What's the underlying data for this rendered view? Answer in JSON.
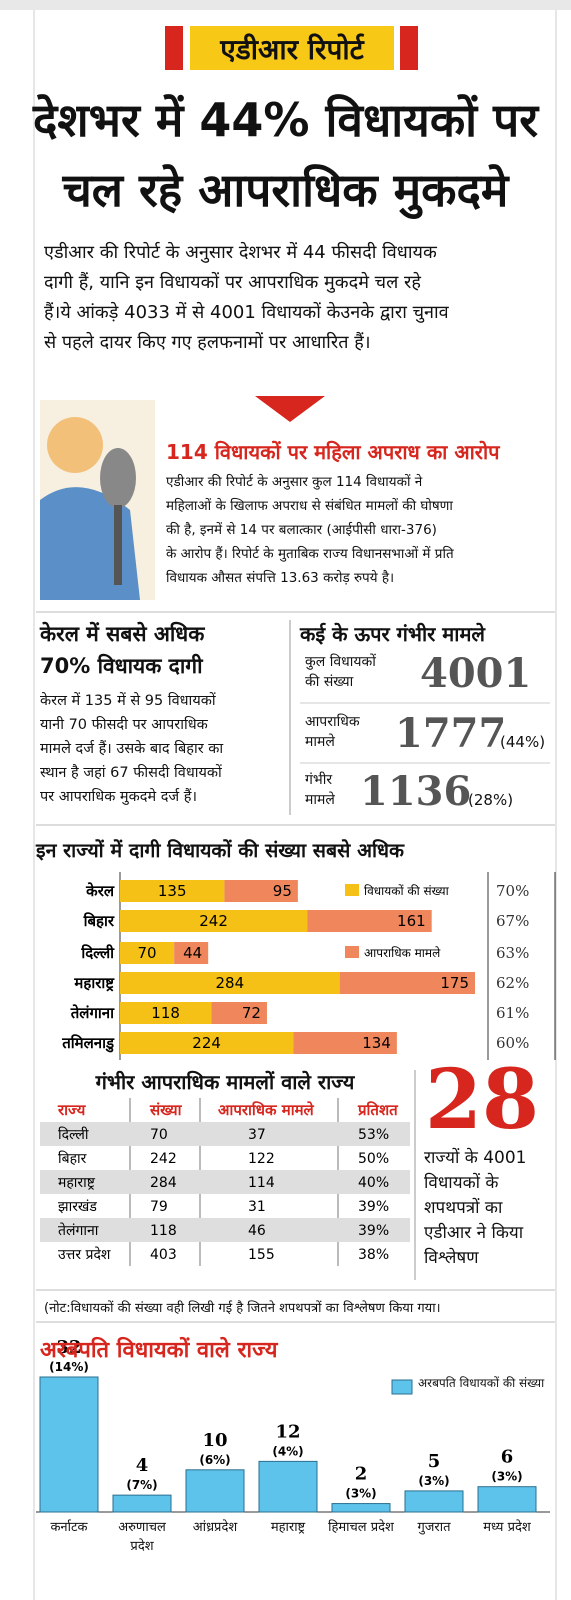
{
  "header": {
    "tag": "एडीआर रिपोर्ट",
    "headline": [
      "देशभर में 44% विधायकों पर",
      "चल रहे आपराधिक मुकदमे"
    ],
    "intro": [
      "एडीआर की रिपोर्ट के अनुसार देशभर में 44 फीसदी विधायक",
      "दागी हैं, यानि इन विधायकों पर आपराधिक मुकदमे चल रहे",
      "हैं।ये आंकड़े 4033 में से 4001 विधायकों केउनके द्वारा चुनाव",
      "से पहले दायर किए गए हलफनामों पर आधारित हैं।"
    ]
  },
  "women": {
    "title": "114 विधायकों पर महिला अपराध का आरोप",
    "lines": [
      "एडीआर की रिपोर्ट के अनुसार कुल 114 विधायकों ने",
      "महिलाओं के खिलाफ अपराध से संबंधित मामलों की घोषणा",
      "की है, इनमें से 14 पर बलात्कार (आईपीसी धारा-376)",
      "के आरोप हैं। रिपोर्ट के मुताबिक राज्य विधानसभाओं में प्रति",
      "विधायक औसत संपत्ति 13.63 करोड़ रुपये है।"
    ]
  },
  "kerala": {
    "title": [
      "केरल में सबसे अधिक",
      "70% विधायक दागी"
    ],
    "lines": [
      "केरल में 135 में से 95 विधायकों",
      "यानी 70 फीसदी पर आपराधिक",
      "मामले दर्ज हैं। उसके बाद बिहार का",
      "स्थान है जहां 67 फीसदी विधायकों",
      "पर आपराधिक मुकदमे दर्ज हैं।"
    ]
  },
  "serious": {
    "title": "कई के ऊपर गंभीर मामले",
    "rows": [
      {
        "label": [
          "कुल विधायकों",
          "की संख्या"
        ],
        "value": "4001"
      },
      {
        "label": [
          "आपराधिक",
          "मामले"
        ],
        "value": "1777",
        "share": "(44%)"
      },
      {
        "label": [
          "गंभीर",
          "मामले"
        ],
        "value": "1136",
        "share": "(28%)"
      }
    ]
  },
  "chart_data": [
    {
      "type": "bar",
      "orientation": "horizontal",
      "stacked": true,
      "title": "इन राज्यों में दागी विधायकों की संख्या सबसे अधिक",
      "categories": [
        "केरल",
        "बिहार",
        "दिल्ली",
        "महाराष्ट्र",
        "तेलंगाना",
        "तमिलनाडु"
      ],
      "series": [
        {
          "name": "विधायकों की संख्या",
          "color": "#f5c116",
          "values": [
            135,
            242,
            70,
            284,
            118,
            224
          ]
        },
        {
          "name": "आपराधिक मामले",
          "color": "#f0875c",
          "values": [
            95,
            161,
            44,
            175,
            72,
            134
          ]
        }
      ],
      "shares": [
        "70%",
        "67%",
        "63%",
        "62%",
        "61%",
        "60%"
      ]
    },
    {
      "type": "bar",
      "title": "अरबपति विधायकों वाले राज्य",
      "categories": [
        "कर्नाटक",
        "अरुणाचल प्रदेश",
        "आंध्रप्रदेश",
        "महाराष्ट्र",
        "हिमाचल प्रदेश",
        "गुजरात",
        "मध्य प्रदेश"
      ],
      "series": [
        {
          "name": "अरबपति विधायकों की संख्या",
          "color": "#5ec3ea",
          "values": [
            32,
            4,
            10,
            12,
            2,
            5,
            6
          ]
        }
      ],
      "shares": [
        "(14%)",
        "(7%)",
        "(6%)",
        "(4%)",
        "(3%)",
        "(3%)",
        "(3%)"
      ]
    }
  ],
  "table": {
    "title": "गंभीर आपराधिक मामलों वाले राज्य",
    "columns": [
      "राज्य",
      "संख्या",
      "आपराधिक मामले",
      "प्रतिशत"
    ],
    "rows": [
      [
        "दिल्ली",
        "70",
        "37",
        "53%"
      ],
      [
        "बिहार",
        "242",
        "122",
        "50%"
      ],
      [
        "महाराष्ट्र",
        "284",
        "114",
        "40%"
      ],
      [
        "झारखंड",
        "79",
        "31",
        "39%"
      ],
      [
        "तेलंगाना",
        "118",
        "46",
        "39%"
      ],
      [
        "उत्तर प्रदेश",
        "403",
        "155",
        "38%"
      ]
    ]
  },
  "stat": {
    "number": "28",
    "lines": [
      "राज्यों के 4001",
      "विधायकों के",
      "शपथपत्रों का",
      "एडीआर ने किया",
      "विश्लेषण"
    ]
  },
  "note": "(नोट:विधायकों की संख्या वही लिखी गई है जितने शपथपत्रों का विश्लेषण किया गया।"
}
